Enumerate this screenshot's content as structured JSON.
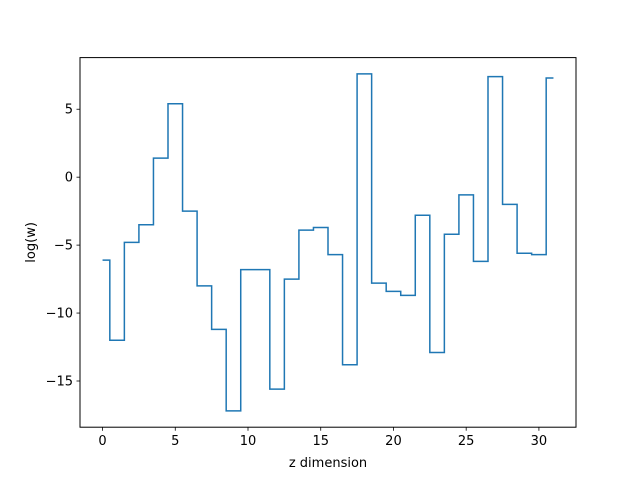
{
  "chart_data": {
    "type": "line",
    "drawstyle": "steps-mid",
    "xlabel": "z dimension",
    "ylabel": "log(w)",
    "xlim": [
      -1.55,
      32.55
    ],
    "ylim": [
      -18.4,
      8.8
    ],
    "xticks": [
      0,
      5,
      10,
      15,
      20,
      25,
      30
    ],
    "yticks": [
      -15,
      -10,
      -5,
      0,
      5
    ],
    "xtick_labels": [
      "0",
      "5",
      "10",
      "15",
      "20",
      "25",
      "30"
    ],
    "ytick_labels": [
      "−15",
      "−10",
      "−5",
      "0",
      "5"
    ],
    "grid": false,
    "series": [
      {
        "color": "#1f77b4",
        "x": [
          0,
          1,
          2,
          3,
          4,
          5,
          6,
          7,
          8,
          9,
          10,
          11,
          12,
          13,
          14,
          15,
          16,
          17,
          18,
          19,
          20,
          21,
          22,
          23,
          24,
          25,
          26,
          27,
          28,
          29,
          30,
          31
        ],
        "y": [
          -6.1,
          -12.0,
          -4.8,
          -3.5,
          1.4,
          5.4,
          -2.5,
          -8.0,
          -11.2,
          -17.2,
          -6.8,
          -6.8,
          -15.6,
          -7.5,
          -3.9,
          -3.7,
          -5.7,
          -13.8,
          7.6,
          -7.8,
          -8.4,
          -8.7,
          -2.8,
          -12.9,
          -4.2,
          -1.3,
          -6.2,
          7.4,
          -2.0,
          -5.6,
          -5.7,
          7.3
        ]
      }
    ]
  }
}
